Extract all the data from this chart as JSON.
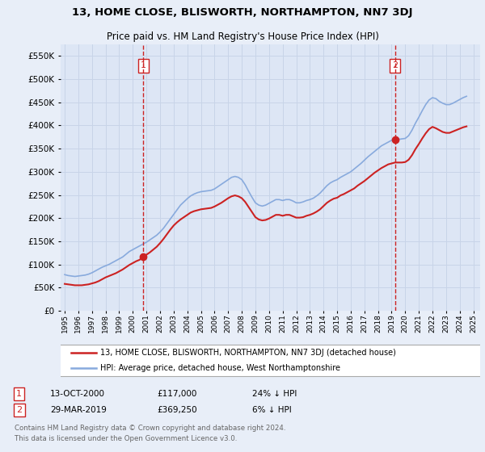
{
  "title": "13, HOME CLOSE, BLISWORTH, NORTHAMPTON, NN7 3DJ",
  "subtitle": "Price paid vs. HM Land Registry's House Price Index (HPI)",
  "background_color": "#e8eef8",
  "plot_bg_color": "#dde6f5",
  "grid_color": "#c8d4e8",
  "ylim": [
    0,
    575000
  ],
  "yticks": [
    0,
    50000,
    100000,
    150000,
    200000,
    250000,
    300000,
    350000,
    400000,
    450000,
    500000,
    550000
  ],
  "xlim_start": 1994.7,
  "xlim_end": 2025.5,
  "xtick_years": [
    1995,
    1996,
    1997,
    1998,
    1999,
    2000,
    2001,
    2002,
    2003,
    2004,
    2005,
    2006,
    2007,
    2008,
    2009,
    2010,
    2011,
    2012,
    2013,
    2014,
    2015,
    2016,
    2017,
    2018,
    2019,
    2020,
    2021,
    2022,
    2023,
    2024,
    2025
  ],
  "hpi_color": "#88aadd",
  "price_color": "#cc2222",
  "marker1_date": 2000.78,
  "marker1_price": 117000,
  "marker1_label": "1",
  "marker2_date": 2019.24,
  "marker2_price": 369250,
  "marker2_label": "2",
  "legend_line1": "13, HOME CLOSE, BLISWORTH, NORTHAMPTON, NN7 3DJ (detached house)",
  "legend_line2": "HPI: Average price, detached house, West Northamptonshire",
  "table_row1": [
    "1",
    "13-OCT-2000",
    "£117,000",
    "24% ↓ HPI"
  ],
  "table_row2": [
    "2",
    "29-MAR-2019",
    "£369,250",
    "6% ↓ HPI"
  ],
  "footer": "Contains HM Land Registry data © Crown copyright and database right 2024.\nThis data is licensed under the Open Government Licence v3.0.",
  "hpi_x": [
    1995.0,
    1995.25,
    1995.5,
    1995.75,
    1996.0,
    1996.25,
    1996.5,
    1996.75,
    1997.0,
    1997.25,
    1997.5,
    1997.75,
    1998.0,
    1998.25,
    1998.5,
    1998.75,
    1999.0,
    1999.25,
    1999.5,
    1999.75,
    2000.0,
    2000.25,
    2000.5,
    2000.75,
    2001.0,
    2001.25,
    2001.5,
    2001.75,
    2002.0,
    2002.25,
    2002.5,
    2002.75,
    2003.0,
    2003.25,
    2003.5,
    2003.75,
    2004.0,
    2004.25,
    2004.5,
    2004.75,
    2005.0,
    2005.25,
    2005.5,
    2005.75,
    2006.0,
    2006.25,
    2006.5,
    2006.75,
    2007.0,
    2007.25,
    2007.5,
    2007.75,
    2008.0,
    2008.25,
    2008.5,
    2008.75,
    2009.0,
    2009.25,
    2009.5,
    2009.75,
    2010.0,
    2010.25,
    2010.5,
    2010.75,
    2011.0,
    2011.25,
    2011.5,
    2011.75,
    2012.0,
    2012.25,
    2012.5,
    2012.75,
    2013.0,
    2013.25,
    2013.5,
    2013.75,
    2014.0,
    2014.25,
    2014.5,
    2014.75,
    2015.0,
    2015.25,
    2015.5,
    2015.75,
    2016.0,
    2016.25,
    2016.5,
    2016.75,
    2017.0,
    2017.25,
    2017.5,
    2017.75,
    2018.0,
    2018.25,
    2018.5,
    2018.75,
    2019.0,
    2019.25,
    2019.5,
    2019.75,
    2020.0,
    2020.25,
    2020.5,
    2020.75,
    2021.0,
    2021.25,
    2021.5,
    2021.75,
    2022.0,
    2022.25,
    2022.5,
    2022.75,
    2023.0,
    2023.25,
    2023.5,
    2023.75,
    2024.0,
    2024.25,
    2024.5
  ],
  "hpi_y": [
    78000,
    76000,
    75000,
    74000,
    75000,
    76000,
    77000,
    79000,
    82000,
    86000,
    90000,
    94000,
    97000,
    100000,
    104000,
    108000,
    112000,
    116000,
    122000,
    128000,
    132000,
    136000,
    140000,
    144000,
    148000,
    153000,
    158000,
    163000,
    170000,
    178000,
    188000,
    198000,
    208000,
    218000,
    228000,
    235000,
    242000,
    248000,
    252000,
    255000,
    257000,
    258000,
    259000,
    260000,
    263000,
    268000,
    273000,
    278000,
    283000,
    288000,
    290000,
    288000,
    283000,
    272000,
    258000,
    245000,
    233000,
    228000,
    226000,
    228000,
    232000,
    236000,
    240000,
    240000,
    238000,
    240000,
    240000,
    237000,
    233000,
    233000,
    235000,
    238000,
    240000,
    243000,
    248000,
    254000,
    262000,
    270000,
    276000,
    280000,
    283000,
    288000,
    292000,
    296000,
    300000,
    306000,
    312000,
    318000,
    325000,
    332000,
    338000,
    344000,
    350000,
    356000,
    360000,
    364000,
    368000,
    370000,
    370000,
    371000,
    372000,
    378000,
    390000,
    405000,
    418000,
    432000,
    445000,
    455000,
    460000,
    458000,
    452000,
    448000,
    445000,
    445000,
    448000,
    452000,
    456000,
    460000,
    463000
  ],
  "price_x": [
    1995.0,
    1995.25,
    1995.5,
    1995.75,
    1996.0,
    1996.25,
    1996.5,
    1996.75,
    1997.0,
    1997.25,
    1997.5,
    1997.75,
    1998.0,
    1998.25,
    1998.5,
    1998.75,
    1999.0,
    1999.25,
    1999.5,
    1999.75,
    2000.0,
    2000.25,
    2000.5,
    2000.75,
    2001.0,
    2001.25,
    2001.5,
    2001.75,
    2002.0,
    2002.25,
    2002.5,
    2002.75,
    2003.0,
    2003.25,
    2003.5,
    2003.75,
    2004.0,
    2004.25,
    2004.5,
    2004.75,
    2005.0,
    2005.25,
    2005.5,
    2005.75,
    2006.0,
    2006.25,
    2006.5,
    2006.75,
    2007.0,
    2007.25,
    2007.5,
    2007.75,
    2008.0,
    2008.25,
    2008.5,
    2008.75,
    2009.0,
    2009.25,
    2009.5,
    2009.75,
    2010.0,
    2010.25,
    2010.5,
    2010.75,
    2011.0,
    2011.25,
    2011.5,
    2011.75,
    2012.0,
    2012.25,
    2012.5,
    2012.75,
    2013.0,
    2013.25,
    2013.5,
    2013.75,
    2014.0,
    2014.25,
    2014.5,
    2014.75,
    2015.0,
    2015.25,
    2015.5,
    2015.75,
    2016.0,
    2016.25,
    2016.5,
    2016.75,
    2017.0,
    2017.25,
    2017.5,
    2017.75,
    2018.0,
    2018.25,
    2018.5,
    2018.75,
    2019.0,
    2019.25,
    2019.5,
    2019.75,
    2020.0,
    2020.25,
    2020.5,
    2020.75,
    2021.0,
    2021.25,
    2021.5,
    2021.75,
    2022.0,
    2022.25,
    2022.5,
    2022.75,
    2023.0,
    2023.25,
    2023.5,
    2023.75,
    2024.0,
    2024.25,
    2024.5
  ],
  "price_y": [
    58000,
    57000,
    56000,
    55000,
    55000,
    55000,
    56000,
    57000,
    59000,
    61000,
    64000,
    68000,
    72000,
    75000,
    78000,
    81000,
    85000,
    89000,
    94000,
    99000,
    103000,
    107000,
    110000,
    117000,
    121000,
    126000,
    132000,
    138000,
    146000,
    155000,
    165000,
    175000,
    184000,
    191000,
    197000,
    202000,
    207000,
    212000,
    215000,
    217000,
    219000,
    220000,
    221000,
    222000,
    225000,
    229000,
    233000,
    238000,
    243000,
    247000,
    249000,
    247000,
    243000,
    235000,
    224000,
    213000,
    202000,
    197000,
    195000,
    196000,
    199000,
    203000,
    207000,
    207000,
    205000,
    207000,
    207000,
    204000,
    201000,
    201000,
    202000,
    205000,
    207000,
    210000,
    214000,
    219000,
    226000,
    233000,
    238000,
    242000,
    244000,
    249000,
    252000,
    256000,
    260000,
    264000,
    270000,
    275000,
    280000,
    286000,
    292000,
    298000,
    303000,
    308000,
    312000,
    316000,
    318000,
    320000,
    320000,
    320000,
    321000,
    326000,
    336000,
    349000,
    360000,
    372000,
    383000,
    392000,
    397000,
    394000,
    390000,
    386000,
    384000,
    384000,
    387000,
    390000,
    393000,
    396000,
    398000
  ]
}
